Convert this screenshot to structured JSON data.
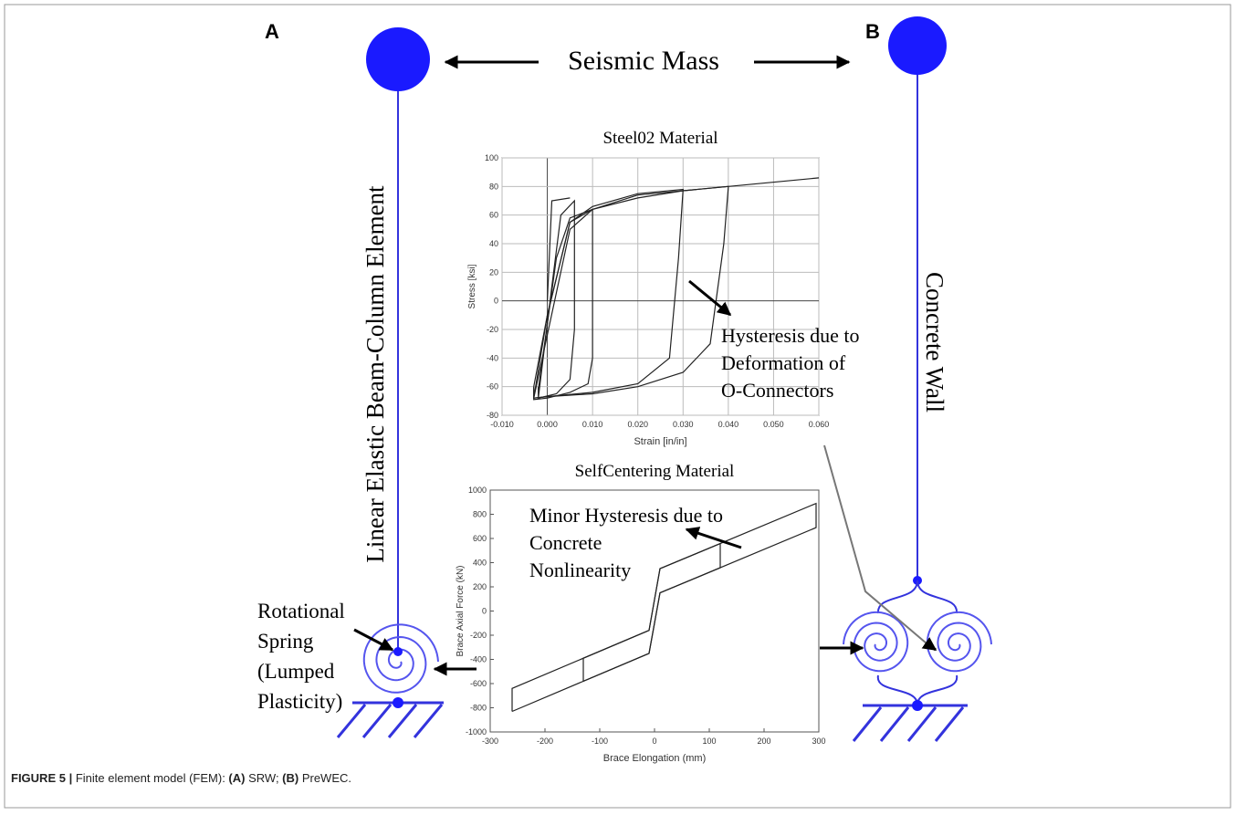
{
  "panels": {
    "a": "A",
    "b": "B"
  },
  "seismic_mass": "Seismic Mass",
  "left_label": "Linear Elastic Beam-Column Element",
  "right_label": "Concrete Wall",
  "rotational_spring": [
    "Rotational",
    "Spring",
    "(Lumped",
    "Plasticity)"
  ],
  "steel_note": [
    "Hysteresis due to",
    "Deformation of",
    "O-Connectors"
  ],
  "sc_note": [
    "Minor Hysteresis due to",
    "Concrete",
    "Nonlinearity"
  ],
  "charts": [
    {
      "type": "line",
      "title": "Steel02 Material",
      "x_label": "Strain [in/in]",
      "y_label": "Stress [ksi]",
      "grid": true,
      "color": "#222",
      "xlim": [
        -0.01,
        0.06
      ],
      "xticks": [
        {
          "value": -0.01,
          "label": "-0.010"
        },
        {
          "value": 0,
          "label": "0.000"
        },
        {
          "value": 0.01,
          "label": "0.010"
        },
        {
          "value": 0.02,
          "label": "0.020"
        },
        {
          "value": 0.03,
          "label": "0.030"
        },
        {
          "value": 0.04,
          "label": "0.040"
        },
        {
          "value": 0.05,
          "label": "0.050"
        },
        {
          "value": 0.06,
          "label": "0.060"
        }
      ],
      "ylim": [
        -80,
        100
      ],
      "yticks": [
        100,
        80,
        60,
        40,
        20,
        0,
        -20,
        -40,
        -60,
        -80
      ],
      "series": [
        {
          "x": [
            -0.002,
            0.001,
            0.003,
            0.006,
            0.006,
            0.005,
            0.002,
            -0.002,
            -0.002
          ],
          "y": [
            -68,
            10,
            60,
            70,
            -20,
            -55,
            -65,
            -68,
            -60
          ]
        },
        {
          "x": [
            -0.002,
            0.002,
            0.005,
            0.01,
            0.01,
            0.009,
            0.005,
            0,
            -0.003,
            -0.003
          ],
          "y": [
            -62,
            30,
            58,
            64,
            -40,
            -58,
            -64,
            -68,
            -69,
            -60
          ]
        },
        {
          "x": [
            -0.003,
            0,
            0.005,
            0.01,
            0.02,
            0.03,
            0.029,
            0.027,
            0.02,
            0.01,
            0,
            -0.003
          ],
          "y": [
            -60,
            -10,
            55,
            66,
            75,
            78,
            30,
            -40,
            -58,
            -64,
            -67,
            -68
          ]
        },
        {
          "x": [
            -0.003,
            0.005,
            0.01,
            0.02,
            0.03,
            0.04,
            0.039,
            0.036,
            0.03,
            0.02,
            0.01,
            0,
            -0.003,
            -0.003
          ],
          "y": [
            -68,
            50,
            64,
            72,
            77,
            80,
            40,
            -30,
            -50,
            -60,
            -65,
            -67,
            -68,
            -60
          ]
        },
        {
          "x": [
            -0.003,
            0,
            0.005,
            0.01,
            0.02,
            0.04,
            0.06
          ],
          "y": [
            -68,
            -10,
            55,
            64,
            74,
            80,
            86
          ]
        },
        {
          "x": [
            0,
            0.001,
            0.005
          ],
          "y": [
            0,
            70,
            72
          ]
        }
      ]
    },
    {
      "type": "line",
      "title": "SelfCentering Material",
      "x_label": "Brace Elongation (mm)",
      "y_label": "Brace Axial Force (kN)",
      "grid": false,
      "color": "#222",
      "xlim": [
        -300,
        300
      ],
      "xticks": [
        -300,
        -200,
        -100,
        0,
        100,
        200,
        300
      ],
      "ylim": [
        -1000,
        1000
      ],
      "yticks": [
        1000,
        800,
        600,
        400,
        200,
        0,
        -200,
        -400,
        -600,
        -800,
        -1000
      ],
      "series": [
        {
          "x": [
            -260,
            -10,
            10,
            295,
            295,
            10,
            -10,
            -260,
            -260
          ],
          "y": [
            -830,
            -350,
            150,
            690,
            890,
            350,
            -160,
            -640,
            -830
          ]
        },
        {
          "x": [
            -130,
            -10,
            10,
            120,
            120,
            10,
            -10,
            -130,
            -130
          ],
          "y": [
            -580,
            -350,
            150,
            358,
            558,
            350,
            -160,
            -390,
            -580
          ]
        }
      ]
    }
  ],
  "caption": [
    "FIGURE 5 |",
    " Finite element model (FEM): ",
    "(A)",
    " SRW; ",
    "(B)",
    " PreWEC."
  ]
}
